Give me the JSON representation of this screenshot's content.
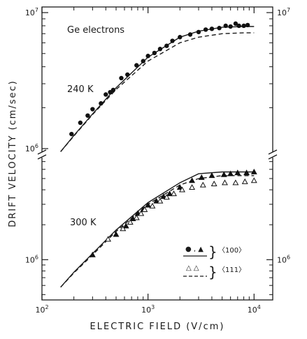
{
  "chart_data": {
    "type": "scatter",
    "title": "",
    "xlabel": "ELECTRIC  FIELD (V/cm)",
    "ylabel": "DRIFT  VELOCITY (cm/sec)",
    "x_scale": "log",
    "y_scale": "log",
    "xlim": [
      100,
      15000
    ],
    "x_ticks": [
      {
        "value": 100,
        "base": "10",
        "exp": "2"
      },
      {
        "value": 1000,
        "base": "10",
        "exp": "3"
      },
      {
        "value": 10000,
        "base": "10",
        "exp": "4"
      }
    ],
    "grid": false,
    "legend_position": "bottom-right",
    "legend": {
      "entries": [
        {
          "markers": "● , ▲",
          "label": "〈100〉"
        },
        {
          "markers": "△   △",
          "label": "〈111〉"
        }
      ]
    },
    "panels": [
      {
        "name": "upper",
        "annotation": "Ge electrons",
        "temperature_label": "240 K",
        "ylim": [
          900000,
          11000000
        ],
        "y_ticks_left": [
          {
            "value": 1000000,
            "base": "10",
            "exp": "6"
          },
          {
            "value": 10000000,
            "base": "10",
            "exp": "7"
          }
        ],
        "y_ticks_right": [
          {
            "value": 10000000,
            "base": "10",
            "exp": "7"
          }
        ],
        "series": [
          {
            "marker": "filled-circle",
            "x": [
              190,
              230,
              270,
              300,
              360,
              400,
              440,
              470,
              560,
              640,
              780,
              900,
              1000,
              1150,
              1300,
              1500,
              1700,
              2000,
              2500,
              3000,
              3500,
              4000,
              4700,
              5400,
              6000,
              6700,
              7200,
              8000,
              8700
            ],
            "y": [
              1280000,
              1550000,
              1750000,
              1950000,
              2150000,
              2500000,
              2600000,
              2700000,
              3300000,
              3500000,
              4100000,
              4400000,
              4800000,
              5050000,
              5400000,
              5700000,
              6200000,
              6600000,
              6900000,
              7200000,
              7500000,
              7600000,
              7700000,
              8000000,
              7900000,
              8300000,
              8000000,
              8000000,
              8100000
            ]
          },
          {
            "line": "solid",
            "x": [
              150,
              200,
              300,
              500,
              1000,
              2000,
              3000,
              5000,
              8000,
              10000
            ],
            "y": [
              950000,
              1250000,
              1800000,
              2800000,
              4700000,
              6600000,
              7300000,
              7800000,
              7900000,
              7900000
            ]
          },
          {
            "line": "dashed",
            "x": [
              150,
              200,
              300,
              500,
              1000,
              2000,
              3000,
              5000,
              8000,
              10000
            ],
            "y": [
              950000,
              1240000,
              1780000,
              2720000,
              4400000,
              6000000,
              6600000,
              7000000,
              7100000,
              7100000
            ]
          }
        ]
      },
      {
        "name": "lower",
        "temperature_label": "300 K",
        "ylim": [
          450000,
          8000000
        ],
        "y_ticks_left": [
          {
            "value": 1000000,
            "base": "10",
            "exp": "6"
          }
        ],
        "y_ticks_right": [
          {
            "value": 1000000,
            "base": "10",
            "exp": "6"
          }
        ],
        "series": [
          {
            "name": "〈100〉",
            "marker": "filled-triangle",
            "x": [
              300,
              500,
              620,
              720,
              800,
              900,
              1000,
              1200,
              1400,
              1600,
              2000,
              2600,
              3200,
              4000,
              5200,
              6000,
              7000,
              8500,
              10000
            ],
            "y": [
              1100000,
              1650000,
              1950000,
              2250000,
              2500000,
              2700000,
              2950000,
              3200000,
              3500000,
              3700000,
              4200000,
              4800000,
              5100000,
              5300000,
              5400000,
              5500000,
              5600000,
              5600000,
              5700000
            ]
          },
          {
            "name": "〈111〉",
            "marker": "open-triangle",
            "x": [
              420,
              580,
              680,
              780,
              860,
              930,
              1100,
              1300,
              1500,
              1750,
              2100,
              2600,
              3300,
              4200,
              5300,
              6700,
              8200,
              10000
            ],
            "y": [
              1500000,
              1850000,
              2100000,
              2300000,
              2500000,
              2700000,
              2900000,
              3200000,
              3450000,
              3700000,
              4000000,
              4200000,
              4400000,
              4500000,
              4600000,
              4600000,
              4700000,
              4800000
            ]
          },
          {
            "line": "solid",
            "x": [
              150,
              200,
              300,
              500,
              1000,
              2000,
              3000,
              5000,
              10000
            ],
            "y": [
              580000,
              780000,
              1130000,
              1800000,
              3100000,
              4600000,
              5500000,
              5700000,
              5700000
            ]
          },
          {
            "line": "dashed",
            "x": [
              150,
              200,
              300,
              500,
              1000,
              2000,
              3000,
              5000,
              10000
            ],
            "y": [
              580000,
              770000,
              1100000,
              1750000,
              3000000,
              4400000,
              5000000,
              5300000,
              5300000
            ]
          }
        ]
      }
    ]
  }
}
